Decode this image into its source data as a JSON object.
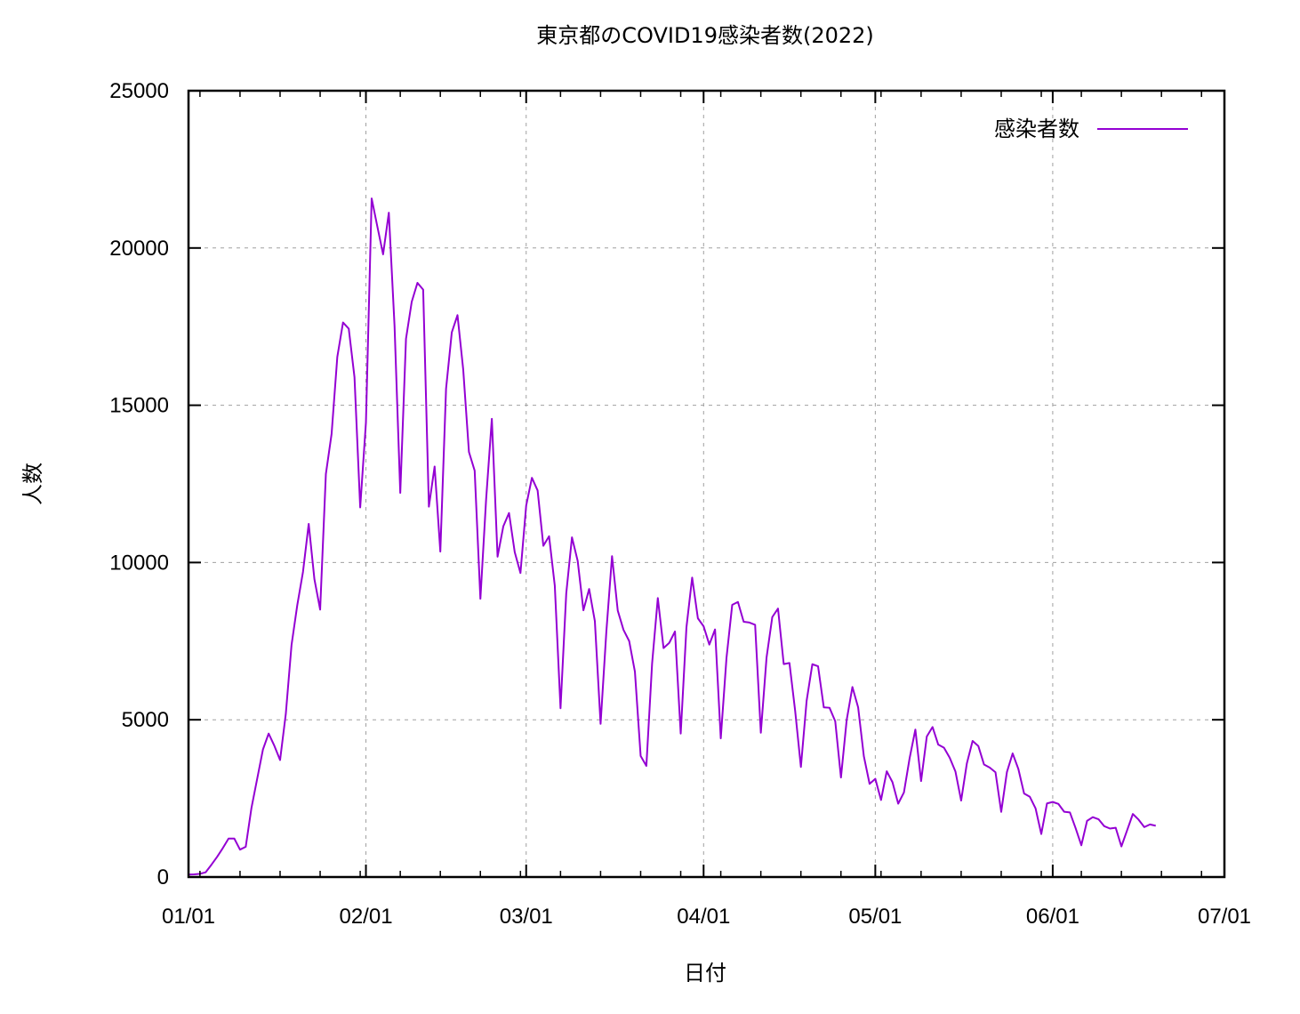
{
  "chart_data": {
    "type": "line",
    "title": "東京都のCOVID19感染者数(2022)",
    "xlabel": "日付",
    "ylabel": "人数",
    "x_start": "2022-01-01",
    "x_range": [
      "01/01",
      "07/01"
    ],
    "ylim": [
      0,
      25000
    ],
    "yticks": [
      0,
      5000,
      10000,
      15000,
      20000,
      25000
    ],
    "xticks": [
      "01/01",
      "02/01",
      "03/01",
      "04/01",
      "05/01",
      "06/01",
      "07/01"
    ],
    "grid": true,
    "legend_position": "top-right",
    "series": [
      {
        "name": "感染者数",
        "color": "#9400d3",
        "points": [
          [
            "01/01",
            79
          ],
          [
            "01/02",
            84
          ],
          [
            "01/03",
            103
          ],
          [
            "01/04",
            151
          ],
          [
            "01/05",
            390
          ],
          [
            "01/06",
            641
          ],
          [
            "01/07",
            922
          ],
          [
            "01/08",
            1224
          ],
          [
            "01/09",
            1223
          ],
          [
            "01/10",
            871
          ],
          [
            "01/11",
            962
          ],
          [
            "01/12",
            2198
          ],
          [
            "01/13",
            3124
          ],
          [
            "01/14",
            4051
          ],
          [
            "01/15",
            4561
          ],
          [
            "01/16",
            4172
          ],
          [
            "01/17",
            3719
          ],
          [
            "01/18",
            5185
          ],
          [
            "01/19",
            7377
          ],
          [
            "01/20",
            8638
          ],
          [
            "01/21",
            9699
          ],
          [
            "01/22",
            11227
          ],
          [
            "01/23",
            9468
          ],
          [
            "01/24",
            8503
          ],
          [
            "01/25",
            12813
          ],
          [
            "01/26",
            14086
          ],
          [
            "01/27",
            16538
          ],
          [
            "01/28",
            17631
          ],
          [
            "01/29",
            17433
          ],
          [
            "01/30",
            15895
          ],
          [
            "01/31",
            11751
          ],
          [
            "02/01",
            14445
          ],
          [
            "02/02",
            21576
          ],
          [
            "02/03",
            20679
          ],
          [
            "02/04",
            19798
          ],
          [
            "02/05",
            21121
          ],
          [
            "02/06",
            17526
          ],
          [
            "02/07",
            12214
          ],
          [
            "02/08",
            17113
          ],
          [
            "02/09",
            18287
          ],
          [
            "02/10",
            18891
          ],
          [
            "02/11",
            18675
          ],
          [
            "02/12",
            11775
          ],
          [
            "02/13",
            13052
          ],
          [
            "02/14",
            10348
          ],
          [
            "02/15",
            15525
          ],
          [
            "02/16",
            17315
          ],
          [
            "02/17",
            17864
          ],
          [
            "02/18",
            16132
          ],
          [
            "02/19",
            13514
          ],
          [
            "02/20",
            12920
          ],
          [
            "02/21",
            8847
          ],
          [
            "02/22",
            12009
          ],
          [
            "02/23",
            14567
          ],
          [
            "02/24",
            10186
          ],
          [
            "02/25",
            11149
          ],
          [
            "02/26",
            11574
          ],
          [
            "02/27",
            10329
          ],
          [
            "02/28",
            9666
          ],
          [
            "03/01",
            11810
          ],
          [
            "03/02",
            12693
          ],
          [
            "03/03",
            12289
          ],
          [
            "03/04",
            10530
          ],
          [
            "03/05",
            10835
          ],
          [
            "03/06",
            9262
          ],
          [
            "03/07",
            5368
          ],
          [
            "03/08",
            9019
          ],
          [
            "03/09",
            10800
          ],
          [
            "03/10",
            10049
          ],
          [
            "03/11",
            8481
          ],
          [
            "03/12",
            9158
          ],
          [
            "03/13",
            8136
          ],
          [
            "03/14",
            4871
          ],
          [
            "03/15",
            7783
          ],
          [
            "03/16",
            10202
          ],
          [
            "03/17",
            8472
          ],
          [
            "03/18",
            7860
          ],
          [
            "03/19",
            7501
          ],
          [
            "03/20",
            6528
          ],
          [
            "03/21",
            3850
          ],
          [
            "03/22",
            3533
          ],
          [
            "03/23",
            6781
          ],
          [
            "03/24",
            8869
          ],
          [
            "03/25",
            7279
          ],
          [
            "03/26",
            7445
          ],
          [
            "03/27",
            7806
          ],
          [
            "03/28",
            4562
          ],
          [
            "03/29",
            7932
          ],
          [
            "03/30",
            9520
          ],
          [
            "03/31",
            8226
          ],
          [
            "04/01",
            7972
          ],
          [
            "04/02",
            7390
          ],
          [
            "04/03",
            7872
          ],
          [
            "04/04",
            4409
          ],
          [
            "04/05",
            6969
          ],
          [
            "04/06",
            8655
          ],
          [
            "04/07",
            8745
          ],
          [
            "04/08",
            8117
          ],
          [
            "04/09",
            8091
          ],
          [
            "04/10",
            8021
          ],
          [
            "04/11",
            4588
          ],
          [
            "04/12",
            6978
          ],
          [
            "04/13",
            8265
          ],
          [
            "04/14",
            8534
          ],
          [
            "04/15",
            6771
          ],
          [
            "04/16",
            6805
          ],
          [
            "04/17",
            5279
          ],
          [
            "04/18",
            3500
          ],
          [
            "04/19",
            5602
          ],
          [
            "04/20",
            6766
          ],
          [
            "04/21",
            6700
          ],
          [
            "04/22",
            5396
          ],
          [
            "04/23",
            5382
          ],
          [
            "04/24",
            4952
          ],
          [
            "04/25",
            3163
          ],
          [
            "04/26",
            4991
          ],
          [
            "04/27",
            6041
          ],
          [
            "04/28",
            5395
          ],
          [
            "04/29",
            3841
          ],
          [
            "04/30",
            2962
          ],
          [
            "05/01",
            3123
          ],
          [
            "05/02",
            2450
          ],
          [
            "05/03",
            3363
          ],
          [
            "05/04",
            3016
          ],
          [
            "05/05",
            2333
          ],
          [
            "05/06",
            2688
          ],
          [
            "05/07",
            3780
          ],
          [
            "05/08",
            4688
          ],
          [
            "05/09",
            3050
          ],
          [
            "05/10",
            4468
          ],
          [
            "05/11",
            4769
          ],
          [
            "05/12",
            4209
          ],
          [
            "05/13",
            4112
          ],
          [
            "05/14",
            3792
          ],
          [
            "05/15",
            3356
          ],
          [
            "05/16",
            2431
          ],
          [
            "05/17",
            3614
          ],
          [
            "05/18",
            4328
          ],
          [
            "05/19",
            4165
          ],
          [
            "05/20",
            3576
          ],
          [
            "05/21",
            3478
          ],
          [
            "05/22",
            3330
          ],
          [
            "05/23",
            2071
          ],
          [
            "05/24",
            3339
          ],
          [
            "05/25",
            3930
          ],
          [
            "05/26",
            3432
          ],
          [
            "05/27",
            2655
          ],
          [
            "05/28",
            2552
          ],
          [
            "05/29",
            2184
          ],
          [
            "05/30",
            1367
          ],
          [
            "05/31",
            2340
          ],
          [
            "06/01",
            2386
          ],
          [
            "06/02",
            2323
          ],
          [
            "06/03",
            2075
          ],
          [
            "06/04",
            2055
          ],
          [
            "06/05",
            1554
          ],
          [
            "06/06",
            1009
          ],
          [
            "06/07",
            1786
          ],
          [
            "06/08",
            1904
          ],
          [
            "06/09",
            1838
          ],
          [
            "06/10",
            1617
          ],
          [
            "06/11",
            1541
          ],
          [
            "06/12",
            1567
          ],
          [
            "06/13",
            972
          ],
          [
            "06/14",
            1486
          ],
          [
            "06/15",
            2004
          ],
          [
            "06/16",
            1825
          ],
          [
            "06/17",
            1588
          ],
          [
            "06/18",
            1672
          ],
          [
            "06/19",
            1630
          ]
        ]
      }
    ]
  }
}
